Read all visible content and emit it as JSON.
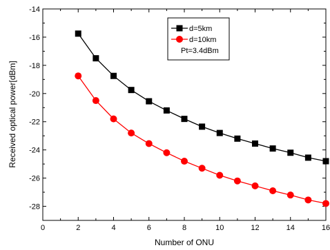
{
  "chart_data": {
    "type": "line",
    "xlabel": "Number of ONU",
    "ylabel": "Received optical power[dBm]",
    "xlim": [
      0,
      16
    ],
    "ylim": [
      -29,
      -14
    ],
    "xticks": [
      0,
      2,
      4,
      6,
      8,
      10,
      12,
      14,
      16
    ],
    "yticks": [
      -28,
      -26,
      -24,
      -22,
      -20,
      -18,
      -16,
      -14
    ],
    "x": [
      2,
      3,
      4,
      5,
      6,
      7,
      8,
      9,
      10,
      11,
      12,
      13,
      14,
      15,
      16
    ],
    "series": [
      {
        "name": "d=5km",
        "marker": "square",
        "color": "#000000",
        "values": [
          -15.75,
          -17.5,
          -18.75,
          -19.75,
          -20.55,
          -21.2,
          -21.8,
          -22.35,
          -22.8,
          -23.2,
          -23.55,
          -23.9,
          -24.2,
          -24.55,
          -24.8
        ]
      },
      {
        "name": "d=10km",
        "marker": "circle",
        "color": "#ff0000",
        "values": [
          -18.75,
          -20.5,
          -21.8,
          -22.8,
          -23.55,
          -24.2,
          -24.8,
          -25.3,
          -25.8,
          -26.2,
          -26.55,
          -26.9,
          -27.2,
          -27.55,
          -27.8
        ]
      }
    ],
    "legend_note": "Pt=3.4dBm",
    "legend_position": "top-right",
    "grid": false
  }
}
